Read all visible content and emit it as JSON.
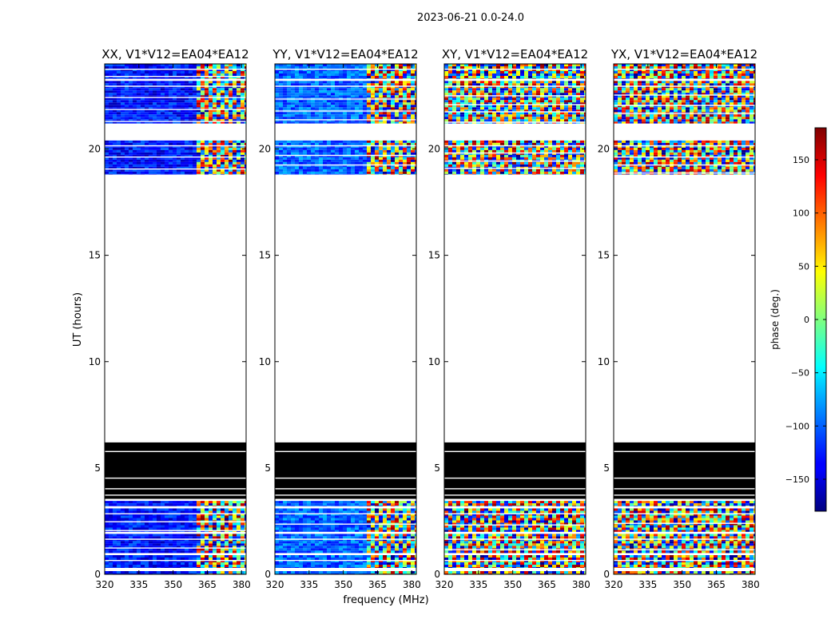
{
  "figure": {
    "suptitle": "2023-06-21 0.0-24.0",
    "xlabel": "frequency (MHz)",
    "ylabel": "UT (hours)"
  },
  "chart_data": {
    "type": "heatmap",
    "xlim": [
      320,
      382
    ],
    "ylim": [
      0,
      24
    ],
    "xticks": [
      320,
      335,
      350,
      365,
      380
    ],
    "yticks": [
      0,
      5,
      10,
      15,
      20
    ],
    "panels": [
      {
        "title": "XX, V1*V12=EA04*EA12",
        "low_ch_phase": -130
      },
      {
        "title": "YY, V1*V12=EA04*EA12",
        "low_ch_phase": -100
      },
      {
        "title": "XY, V1*V12=EA04*EA12",
        "low_ch_phase": null
      },
      {
        "title": "YX, V1*V12=EA04*EA12",
        "low_ch_phase": null
      }
    ],
    "data_blocks_ut": [
      [
        0.0,
        0.15
      ],
      [
        0.3,
        0.9
      ],
      [
        1.0,
        1.9
      ],
      [
        2.0,
        3.1
      ],
      [
        3.2,
        3.45
      ],
      [
        18.8,
        20.4
      ],
      [
        21.2,
        23.2
      ],
      [
        23.3,
        24.0
      ]
    ],
    "flagged_blocks_ut": [
      [
        3.55,
        6.2
      ]
    ],
    "colorbar": {
      "label": "phase (deg.)",
      "range": [
        -180,
        180
      ],
      "ticks": [
        -150,
        -100,
        -50,
        0,
        50,
        100,
        150
      ],
      "tick_labels": [
        "−150",
        "−100",
        "−50",
        "0",
        "50",
        "100",
        "150"
      ]
    }
  }
}
